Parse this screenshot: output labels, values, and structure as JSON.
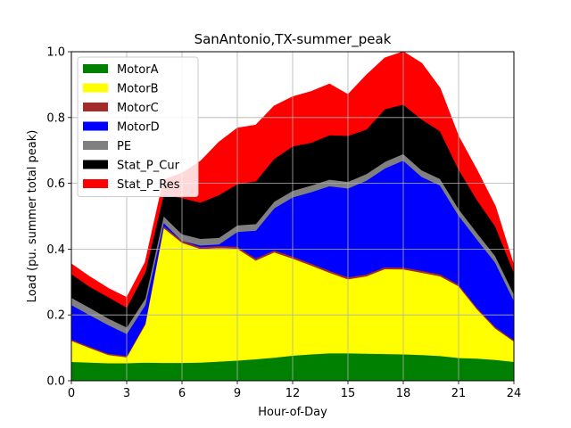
{
  "chart_data": {
    "type": "area",
    "stacked": true,
    "title": "SanAntonio,TX-summer_peak",
    "xlabel": "Hour-of-Day",
    "ylabel": "Load (pu. summer total peak)",
    "xlim": [
      0,
      24
    ],
    "ylim": [
      0,
      1.0
    ],
    "xticks": [
      0,
      3,
      6,
      9,
      12,
      15,
      18,
      21,
      24
    ],
    "yticks": [
      0.0,
      0.2,
      0.4,
      0.6,
      0.8,
      1.0
    ],
    "xtick_labels": [
      "0",
      "3",
      "6",
      "9",
      "12",
      "15",
      "18",
      "21",
      "24"
    ],
    "ytick_labels": [
      "0.0",
      "0.2",
      "0.4",
      "0.6",
      "0.8",
      "1.0"
    ],
    "grid": true,
    "legend_position": "upper-left",
    "x": [
      0,
      1,
      2,
      3,
      4,
      5,
      6,
      7,
      8,
      9,
      10,
      11,
      12,
      13,
      14,
      15,
      16,
      17,
      18,
      19,
      20,
      21,
      22,
      23,
      24
    ],
    "series": [
      {
        "name": "MotorA",
        "color": "#008000",
        "values": [
          0.058,
          0.056,
          0.054,
          0.054,
          0.056,
          0.055,
          0.055,
          0.056,
          0.059,
          0.062,
          0.066,
          0.071,
          0.077,
          0.081,
          0.084,
          0.084,
          0.083,
          0.082,
          0.081,
          0.079,
          0.076,
          0.07,
          0.068,
          0.064,
          0.058
        ]
      },
      {
        "name": "MotorB",
        "color": "#ffff00",
        "values": [
          0.064,
          0.044,
          0.025,
          0.018,
          0.115,
          0.41,
          0.365,
          0.345,
          0.345,
          0.34,
          0.3,
          0.32,
          0.295,
          0.27,
          0.245,
          0.225,
          0.235,
          0.258,
          0.258,
          0.25,
          0.242,
          0.218,
          0.15,
          0.095,
          0.062
        ]
      },
      {
        "name": "MotorC",
        "color": "#a52a2a",
        "values": [
          0.004,
          0.004,
          0.004,
          0.004,
          0.004,
          0.006,
          0.006,
          0.006,
          0.006,
          0.006,
          0.006,
          0.006,
          0.006,
          0.006,
          0.006,
          0.006,
          0.006,
          0.006,
          0.006,
          0.006,
          0.006,
          0.005,
          0.005,
          0.005,
          0.004
        ]
      },
      {
        "name": "MotorD",
        "color": "#0000ff",
        "values": [
          0.105,
          0.096,
          0.087,
          0.067,
          0.055,
          0.01,
          0.0,
          0.005,
          0.005,
          0.045,
          0.085,
          0.128,
          0.18,
          0.217,
          0.257,
          0.27,
          0.285,
          0.3,
          0.325,
          0.285,
          0.27,
          0.21,
          0.207,
          0.195,
          0.12
        ]
      },
      {
        "name": "PE",
        "color": "#808080",
        "values": [
          0.022,
          0.022,
          0.02,
          0.02,
          0.02,
          0.02,
          0.02,
          0.02,
          0.02,
          0.02,
          0.02,
          0.02,
          0.02,
          0.02,
          0.02,
          0.02,
          0.02,
          0.02,
          0.02,
          0.02,
          0.02,
          0.02,
          0.02,
          0.02,
          0.02
        ]
      },
      {
        "name": "Stat_P_Cur",
        "color": "#000000",
        "values": [
          0.072,
          0.064,
          0.065,
          0.06,
          0.08,
          0.065,
          0.11,
          0.11,
          0.13,
          0.125,
          0.13,
          0.13,
          0.135,
          0.13,
          0.135,
          0.14,
          0.135,
          0.16,
          0.15,
          0.155,
          0.145,
          0.12,
          0.1,
          0.09,
          0.066
        ]
      },
      {
        "name": "Stat_P_Res",
        "color": "#ff0000",
        "values": [
          0.03,
          0.03,
          0.026,
          0.03,
          0.03,
          0.044,
          0.075,
          0.125,
          0.16,
          0.17,
          0.17,
          0.16,
          0.15,
          0.155,
          0.155,
          0.125,
          0.165,
          0.155,
          0.16,
          0.17,
          0.13,
          0.1,
          0.09,
          0.061,
          0.02
        ]
      }
    ]
  }
}
